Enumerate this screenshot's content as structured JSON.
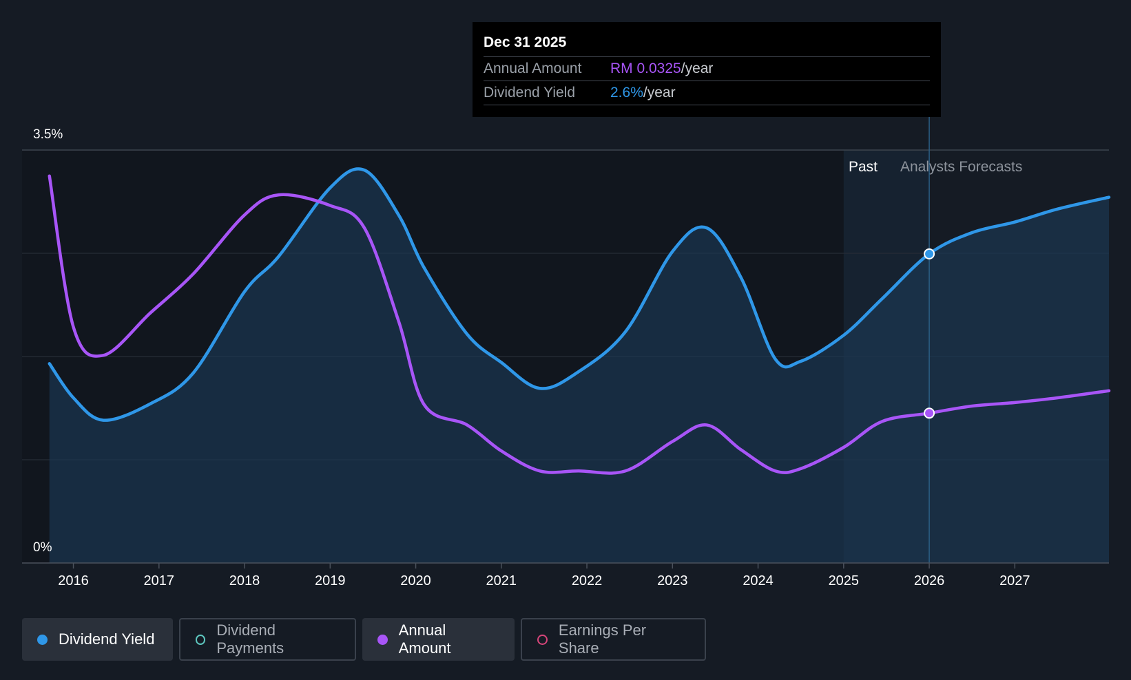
{
  "tooltip": {
    "date": "Dec 31 2025",
    "rows": [
      {
        "key": "Annual Amount",
        "value": "RM 0.0325",
        "unit": "/year"
      },
      {
        "key": "Dividend Yield",
        "value": "2.6%",
        "unit": "/year"
      }
    ]
  },
  "regions": {
    "past": "Past",
    "forecast": "Analysts Forecasts"
  },
  "legend": [
    {
      "label": "Dividend Yield",
      "color": "#2f97e8",
      "active": true
    },
    {
      "label": "Dividend Payments",
      "color": "#5ec8c0",
      "active": false
    },
    {
      "label": "Annual Amount",
      "color": "#a855f7",
      "active": true
    },
    {
      "label": "Earnings Per Share",
      "color": "#d6457a",
      "active": false
    }
  ],
  "chart_data": {
    "type": "line",
    "y_axis_labels": [
      "3.5%",
      "0%"
    ],
    "ylim": [
      0,
      3.5
    ],
    "xlim": [
      2015.4,
      2028.1
    ],
    "x_ticks": [
      2016,
      2017,
      2018,
      2019,
      2020,
      2021,
      2022,
      2023,
      2024,
      2025,
      2026,
      2027
    ],
    "grid": true,
    "past_forecast_boundary": 2026.0,
    "series": [
      {
        "name": "Dividend Yield",
        "color": "#2f97e8",
        "area": true,
        "x": [
          2015.72,
          2016.0,
          2016.35,
          2016.9,
          2017.4,
          2018.0,
          2018.4,
          2019.0,
          2019.4,
          2019.8,
          2020.1,
          2020.6,
          2021.0,
          2021.45,
          2021.9,
          2022.45,
          2023.0,
          2023.4,
          2023.8,
          2024.2,
          2024.5,
          2025.0,
          2025.45,
          2026.0,
          2026.5,
          2027.0,
          2027.5,
          2028.1
        ],
        "y": [
          1.69,
          1.4,
          1.21,
          1.35,
          1.61,
          2.3,
          2.6,
          3.18,
          3.33,
          2.95,
          2.5,
          1.94,
          1.7,
          1.48,
          1.62,
          1.96,
          2.64,
          2.84,
          2.42,
          1.73,
          1.71,
          1.93,
          2.24,
          2.62,
          2.8,
          2.89,
          3.0,
          3.1
        ]
      },
      {
        "name": "Annual Amount",
        "color": "#a855f7",
        "area": false,
        "x": [
          2015.72,
          2016.0,
          2016.35,
          2016.9,
          2017.4,
          2018.0,
          2018.4,
          2019.0,
          2019.4,
          2019.8,
          2020.1,
          2020.6,
          2021.0,
          2021.45,
          2021.9,
          2022.45,
          2023.0,
          2023.4,
          2023.8,
          2024.2,
          2024.5,
          2025.0,
          2025.45,
          2026.0,
          2026.5,
          2027.0,
          2027.5,
          2028.1
        ],
        "y": [
          3.28,
          2.0,
          1.76,
          2.12,
          2.45,
          2.95,
          3.12,
          3.03,
          2.84,
          2.05,
          1.34,
          1.17,
          0.95,
          0.78,
          0.78,
          0.78,
          1.03,
          1.17,
          0.96,
          0.78,
          0.8,
          0.98,
          1.2,
          1.27,
          1.33,
          1.36,
          1.4,
          1.46
        ]
      }
    ]
  }
}
